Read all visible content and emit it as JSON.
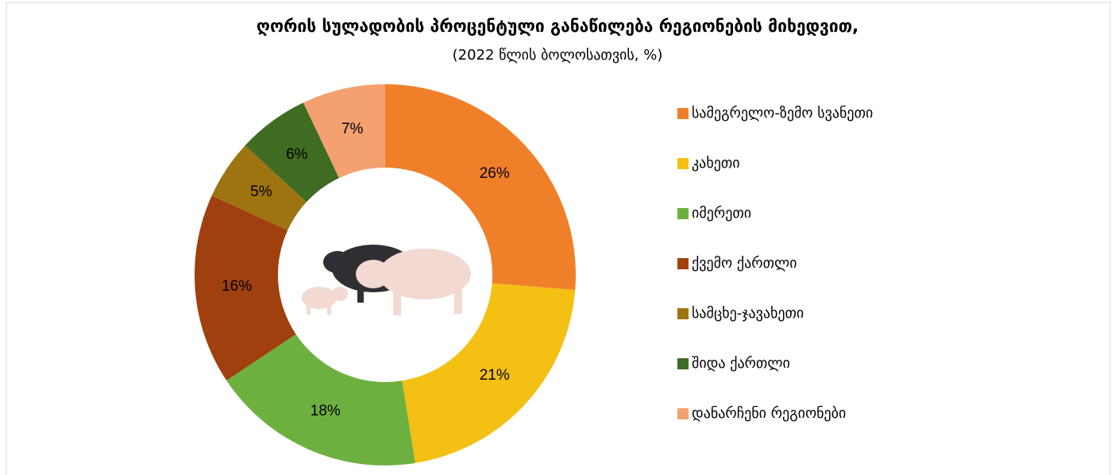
{
  "chart_data": {
    "type": "donut",
    "title": "ღორის სულადობის პროცენტული განაწილება რეგიონების მიხედვით,",
    "subtitle": "(2022 წლის ბოლოსათვის, %)",
    "categories": [
      "სამეგრელო-ზემო სვანეთი",
      "კახეთი",
      "იმერეთი",
      "ქვემო ქართლი",
      "სამცხე-ჯავახეთი",
      "შიდა ქართლი",
      "დანარჩენი რეგიონები"
    ],
    "values": [
      26,
      21,
      18,
      16,
      5,
      6,
      7
    ],
    "value_labels": [
      "26%",
      "21%",
      "18%",
      "16%",
      "5%",
      "6%",
      "7%"
    ],
    "colors": [
      "#f07f2a",
      "#f5c014",
      "#6eb040",
      "#a0400e",
      "#9e7410",
      "#3f6b22",
      "#f4a070"
    ],
    "legend": "right"
  }
}
